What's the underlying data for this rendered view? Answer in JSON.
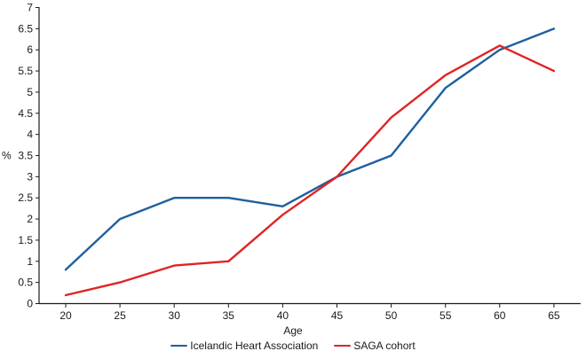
{
  "figure": {
    "background": "#ffffff",
    "text_color": "#1a1a1a",
    "axis_color": "#1a1a1a"
  },
  "chart_data": {
    "type": "line",
    "x": [
      20,
      25,
      30,
      35,
      40,
      45,
      50,
      55,
      60,
      65
    ],
    "series": [
      {
        "name": "Icelandic Heart Association",
        "color": "#1F5F9E",
        "values": [
          0.8,
          2.0,
          2.5,
          2.5,
          2.3,
          3.0,
          3.5,
          5.1,
          6.0,
          6.5
        ]
      },
      {
        "name": "SAGA cohort",
        "color": "#E02424",
        "values": [
          0.2,
          0.5,
          0.9,
          1.0,
          2.1,
          3.0,
          4.4,
          5.4,
          6.1,
          5.5
        ]
      }
    ],
    "title": "",
    "xlabel": "Age",
    "ylabel": "%",
    "ylim": [
      0,
      7
    ],
    "ytick_step": 0.5,
    "xticks": [
      20,
      25,
      30,
      35,
      40,
      45,
      50,
      55,
      60,
      65
    ],
    "grid": false,
    "legend_position": "bottom"
  }
}
